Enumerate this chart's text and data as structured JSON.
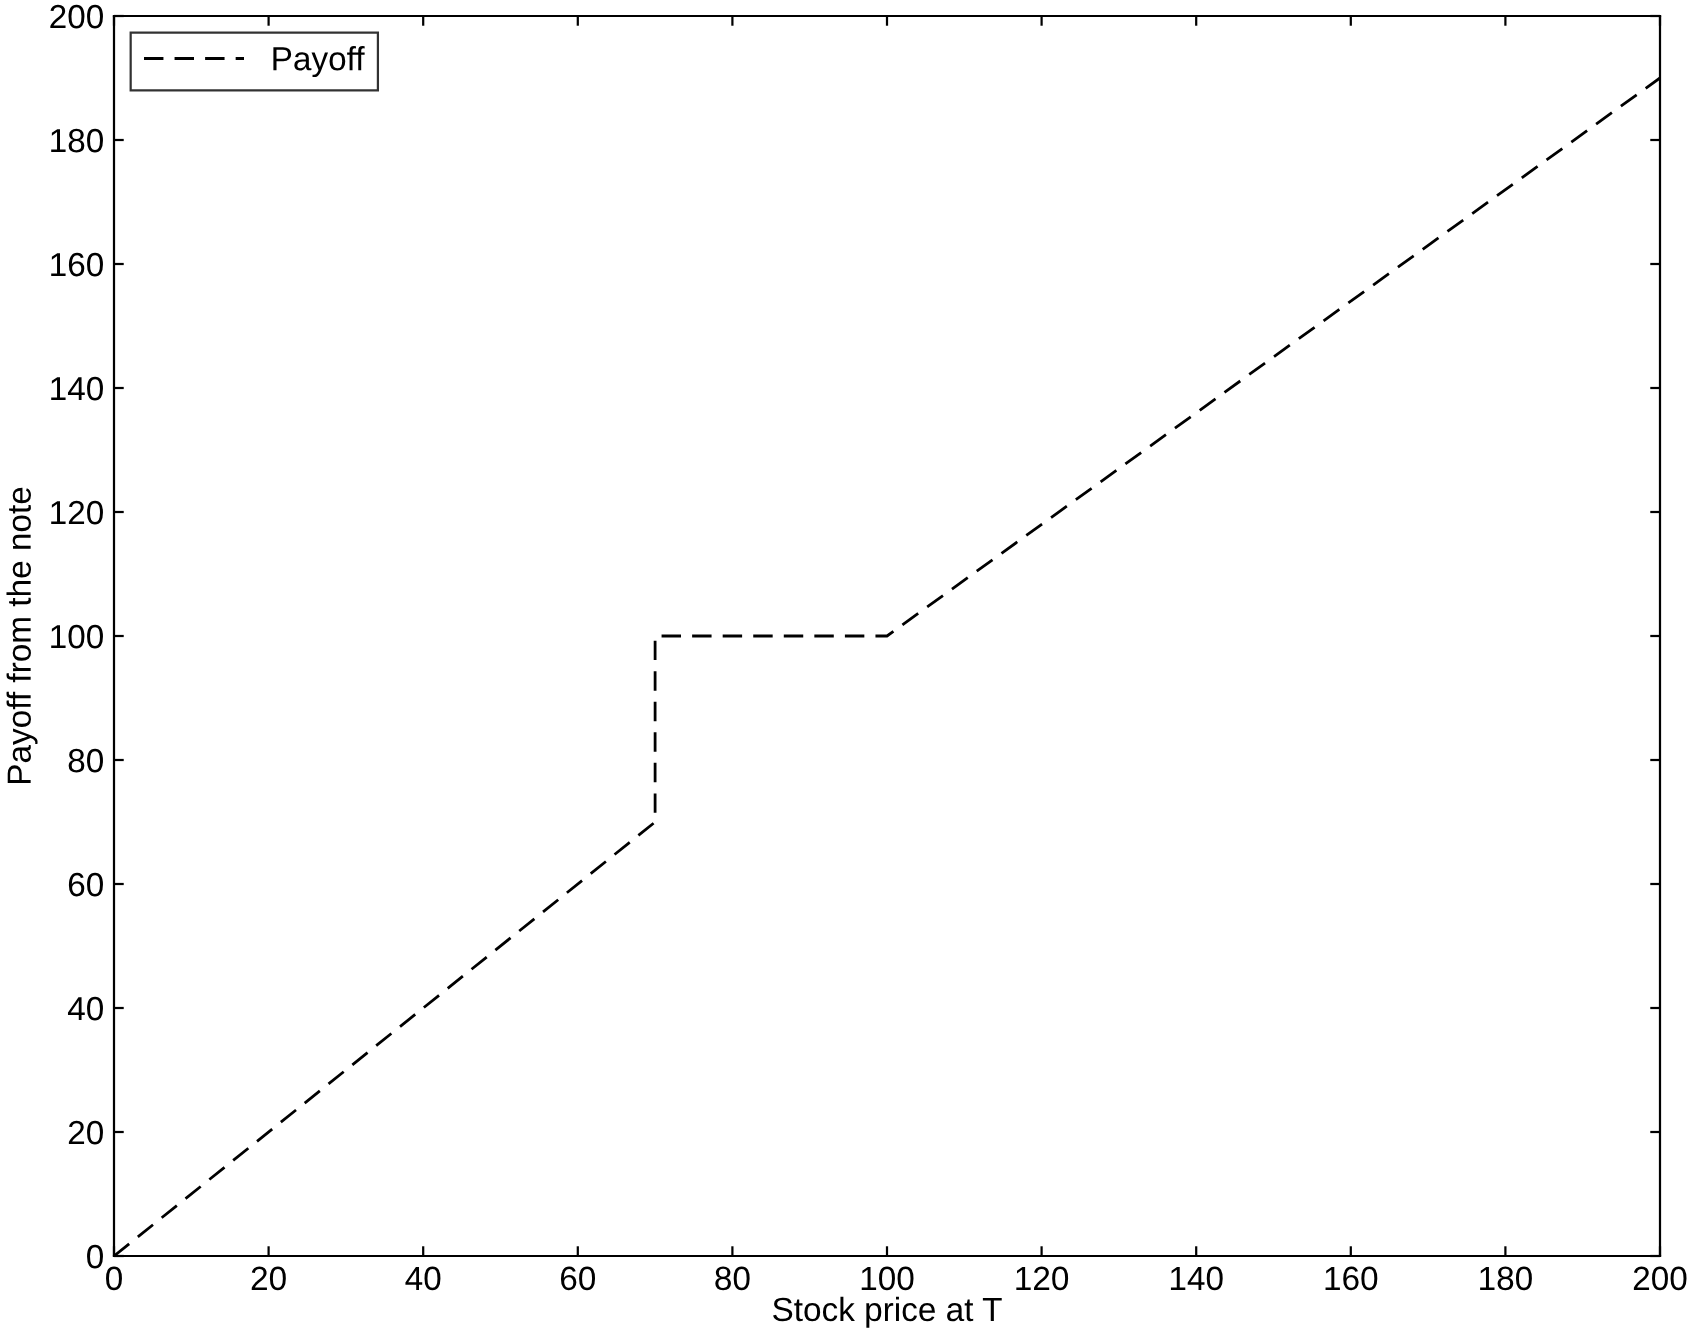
{
  "chart_data": {
    "type": "line",
    "xlabel": "Stock price at T",
    "ylabel": "Payoff from the note",
    "series": [
      {
        "name": "Payoff",
        "color": "#000000",
        "x": [
          0,
          70,
          70,
          100,
          200
        ],
        "values": [
          0,
          70,
          100,
          100,
          190
        ]
      }
    ],
    "xlim": [
      0,
      200
    ],
    "ylim": [
      0,
      200
    ],
    "xticks": [
      0,
      20,
      40,
      60,
      80,
      100,
      120,
      140,
      160,
      180,
      200
    ],
    "yticks": [
      0,
      20,
      40,
      60,
      80,
      100,
      120,
      140,
      160,
      180,
      200
    ],
    "line_style": "dashed",
    "marker": "none",
    "legend": "top left",
    "grid": false
  }
}
